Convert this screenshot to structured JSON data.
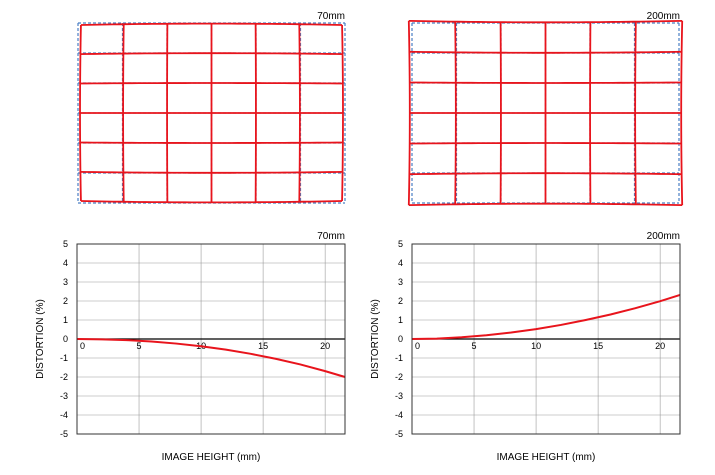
{
  "colors": {
    "curve": "#e8141c",
    "ideal_grid": "#4a7fc4",
    "plot_grid": "#9a9a9a",
    "frame": "#333333",
    "axis": "#000000"
  },
  "grids": [
    {
      "label": "70mm",
      "distortion": "barrel",
      "cols": 6,
      "rows": 6
    },
    {
      "label": "200mm",
      "distortion": "pincushion",
      "cols": 6,
      "rows": 6
    }
  ],
  "chart_data": [
    {
      "type": "line",
      "title": "70mm",
      "xlabel": "IMAGE HEIGHT (mm)",
      "ylabel": "DISTORTION (%)",
      "xlim": [
        0,
        21.6
      ],
      "ylim": [
        -5,
        5
      ],
      "xticks": [
        0,
        5,
        10,
        15,
        20
      ],
      "yticks": [
        5,
        4,
        3,
        2,
        1,
        0,
        -1,
        -2,
        -3,
        -4,
        -5
      ],
      "grid": true,
      "series": [
        {
          "x": [
            0,
            2,
            4,
            6,
            8,
            10,
            12,
            14,
            16,
            18,
            20,
            21.6
          ],
          "y": [
            0,
            -0.02,
            -0.06,
            -0.13,
            -0.24,
            -0.38,
            -0.56,
            -0.78,
            -1.04,
            -1.34,
            -1.69,
            -2.0
          ]
        }
      ]
    },
    {
      "type": "line",
      "title": "200mm",
      "xlabel": "IMAGE HEIGHT (mm)",
      "ylabel": "DISTORTION (%)",
      "xlim": [
        0,
        21.6
      ],
      "ylim": [
        -5,
        5
      ],
      "xticks": [
        0,
        5,
        10,
        15,
        20
      ],
      "yticks": [
        5,
        4,
        3,
        2,
        1,
        0,
        -1,
        -2,
        -3,
        -4,
        -5
      ],
      "grid": true,
      "series": [
        {
          "x": [
            0,
            2,
            4,
            6,
            8,
            10,
            12,
            14,
            16,
            18,
            20,
            21.6
          ],
          "y": [
            0,
            0.02,
            0.09,
            0.2,
            0.34,
            0.52,
            0.74,
            1.0,
            1.29,
            1.62,
            1.99,
            2.32
          ]
        }
      ]
    }
  ]
}
